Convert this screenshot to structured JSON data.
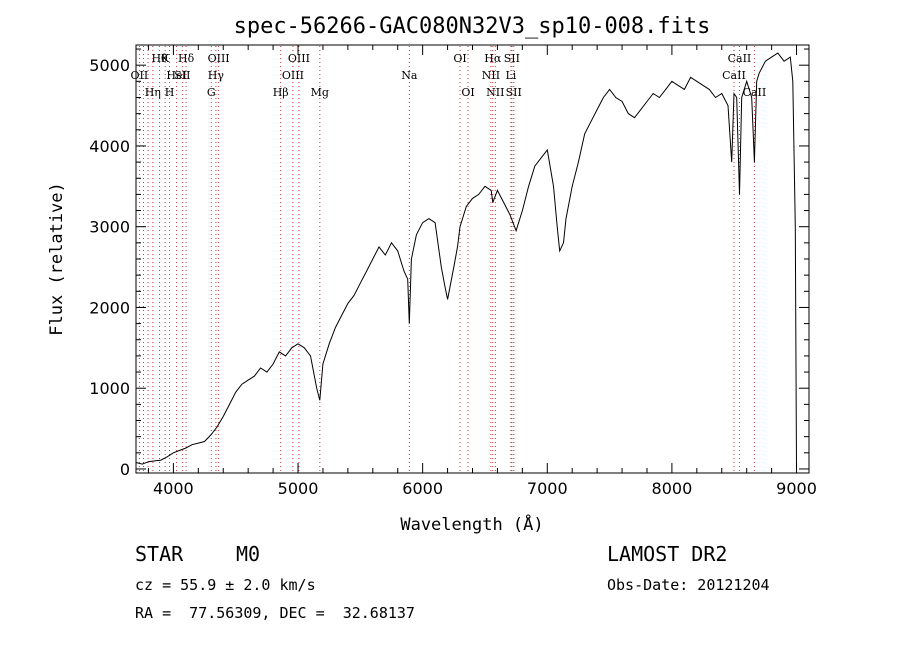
{
  "chart_data": {
    "type": "line",
    "title": "spec-56266-GAC080N32V3_sp10-008.fits",
    "xlabel": "Wavelength (Å)",
    "ylabel": "Flux (relative)",
    "xlim": [
      3700,
      9100
    ],
    "ylim": [
      -50,
      5250
    ],
    "x_ticks": [
      4000,
      5000,
      6000,
      7000,
      8000,
      9000
    ],
    "y_ticks": [
      0,
      1000,
      2000,
      3000,
      4000,
      5000
    ],
    "x_minor_step": 200,
    "y_minor_step": 200,
    "series": [
      {
        "name": "flux",
        "color": "#000000",
        "x": [
          3700,
          3750,
          3800,
          3850,
          3900,
          3950,
          4000,
          4050,
          4100,
          4150,
          4200,
          4250,
          4300,
          4350,
          4400,
          4450,
          4500,
          4550,
          4600,
          4650,
          4700,
          4750,
          4800,
          4850,
          4900,
          4950,
          5000,
          5050,
          5100,
          5150,
          5175,
          5200,
          5250,
          5300,
          5350,
          5400,
          5450,
          5500,
          5550,
          5600,
          5650,
          5700,
          5750,
          5800,
          5850,
          5880,
          5893,
          5910,
          5950,
          6000,
          6050,
          6100,
          6150,
          6180,
          6200,
          6250,
          6280,
          6300,
          6350,
          6400,
          6450,
          6500,
          6550,
          6563,
          6600,
          6650,
          6700,
          6750,
          6800,
          6850,
          6900,
          6950,
          7000,
          7050,
          7080,
          7100,
          7130,
          7150,
          7200,
          7250,
          7300,
          7350,
          7400,
          7450,
          7500,
          7550,
          7600,
          7650,
          7700,
          7750,
          7800,
          7850,
          7900,
          7950,
          8000,
          8050,
          8100,
          8150,
          8200,
          8250,
          8300,
          8350,
          8400,
          8450,
          8480,
          8498,
          8520,
          8542,
          8560,
          8580,
          8600,
          8620,
          8640,
          8662,
          8680,
          8700,
          8750,
          8800,
          8850,
          8900,
          8950,
          8970,
          8990,
          9000
        ],
        "y": [
          80,
          60,
          90,
          100,
          110,
          150,
          200,
          230,
          260,
          300,
          320,
          340,
          420,
          520,
          650,
          800,
          950,
          1050,
          1100,
          1150,
          1250,
          1200,
          1300,
          1450,
          1400,
          1500,
          1550,
          1500,
          1400,
          1000,
          850,
          1300,
          1550,
          1750,
          1900,
          2050,
          2150,
          2300,
          2450,
          2600,
          2750,
          2650,
          2800,
          2700,
          2450,
          2350,
          1800,
          2600,
          2900,
          3050,
          3100,
          3050,
          2500,
          2250,
          2100,
          2500,
          2750,
          3000,
          3250,
          3350,
          3400,
          3500,
          3450,
          3300,
          3450,
          3300,
          3150,
          2950,
          3200,
          3500,
          3750,
          3850,
          3950,
          3500,
          3000,
          2700,
          2800,
          3100,
          3500,
          3800,
          4150,
          4300,
          4450,
          4600,
          4700,
          4600,
          4550,
          4400,
          4350,
          4450,
          4550,
          4650,
          4600,
          4700,
          4800,
          4750,
          4700,
          4850,
          4800,
          4750,
          4700,
          4600,
          4650,
          4500,
          3800,
          4650,
          4600,
          3400,
          4600,
          4700,
          4800,
          4700,
          4600,
          3800,
          4800,
          4900,
          5050,
          5100,
          5150,
          5050,
          5100,
          4800,
          3000,
          0
        ]
      }
    ],
    "line_markers": [
      {
        "x": 3727,
        "label": "OII",
        "row": 1
      },
      {
        "x": 3760,
        "label": "",
        "row": 0
      },
      {
        "x": 3797,
        "label": "",
        "row": 0
      },
      {
        "x": 3835,
        "label": "Hη",
        "row": 2
      },
      {
        "x": 3889,
        "label": "Hθ",
        "row": 0
      },
      {
        "x": 3934,
        "label": "K",
        "row": 0
      },
      {
        "x": 3969,
        "label": "H",
        "row": 2
      },
      {
        "x": 4026,
        "label": "HeI",
        "row": 1
      },
      {
        "x": 4072,
        "label": "SII",
        "row": 1
      },
      {
        "x": 4102,
        "label": "Hδ",
        "row": 0
      },
      {
        "x": 4304,
        "label": "G",
        "row": 2
      },
      {
        "x": 4341,
        "label": "Hγ",
        "row": 1
      },
      {
        "x": 4363,
        "label": "OIII",
        "row": 0
      },
      {
        "x": 4861,
        "label": "Hβ",
        "row": 2
      },
      {
        "x": 4959,
        "label": "OIII",
        "row": 1
      },
      {
        "x": 5007,
        "label": "OIII",
        "row": 0
      },
      {
        "x": 5175,
        "label": "Mg",
        "row": 2
      },
      {
        "x": 5893,
        "label": "Na",
        "row": 1
      },
      {
        "x": 6300,
        "label": "OI",
        "row": 0
      },
      {
        "x": 6364,
        "label": "OI",
        "row": 2
      },
      {
        "x": 6548,
        "label": "NII",
        "row": 1
      },
      {
        "x": 6563,
        "label": "Hα",
        "row": 0
      },
      {
        "x": 6583,
        "label": "NII",
        "row": 2
      },
      {
        "x": 6708,
        "label": "Li",
        "row": 1
      },
      {
        "x": 6716,
        "label": "SII",
        "row": 0
      },
      {
        "x": 6731,
        "label": "SII",
        "row": 2
      },
      {
        "x": 8498,
        "label": "CaII",
        "row": 1
      },
      {
        "x": 8542,
        "label": "CaII",
        "row": 0
      },
      {
        "x": 8662,
        "label": "CaII",
        "row": 2
      }
    ],
    "annotations": {
      "object_class": "STAR",
      "subclass": "M0",
      "survey": "LAMOST DR2",
      "cz": "cz = 55.9 ± 2.0 km/s",
      "obs_date": "Obs-Date: 20121204",
      "coords": "RA =  77.56309, DEC =  32.68137"
    }
  }
}
